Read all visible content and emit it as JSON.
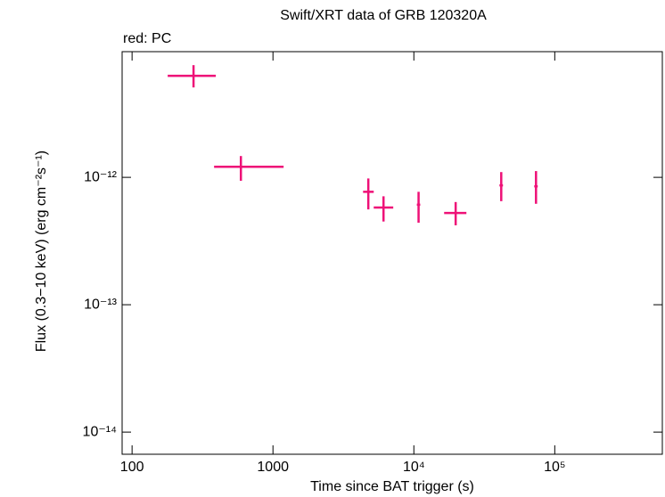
{
  "chart_data": {
    "type": "scatter",
    "title": "Swift/XRT data of GRB 120320A",
    "annotation": "red: PC",
    "x_label": "Time since BAT trigger (s)",
    "y_label": "Flux (0.3−10 keV) (erg cm⁻²s⁻¹)",
    "log_x": true,
    "log_y": true,
    "xlim": [
      85,
      580000
    ],
    "ylim": [
      6.7e-15,
      9.7e-12
    ],
    "xticks": [
      100,
      1000,
      {
        "value": 10000,
        "label": "10⁴"
      },
      {
        "value": 100000,
        "label": "10⁵"
      }
    ],
    "yticks": [
      {
        "value": 1e-14,
        "label": "10⁻¹⁴"
      },
      {
        "value": 1e-13,
        "label": "10⁻¹³"
      },
      {
        "value": 1e-12,
        "label": "10⁻¹²"
      }
    ],
    "series": [
      {
        "color": "#ee1177",
        "x": [
          273,
          592,
          4750,
          6090,
          10800,
          19800,
          41700,
          73600
        ],
        "x_low": [
          179,
          382,
          4360,
          5190,
          10500,
          16400,
          40500,
          71500
        ],
        "x_high": [
          393,
          1190,
          5190,
          7140,
          11100,
          23600,
          42900,
          75700
        ],
        "values": [
          6.27e-12,
          1.21e-12,
          7.7e-13,
          5.8e-13,
          6.1e-13,
          5.25e-13,
          8.65e-13,
          8.5e-13
        ],
        "y_low": [
          5.08e-12,
          9.4e-13,
          5.6e-13,
          4.5e-13,
          4.4e-13,
          4.2e-13,
          6.5e-13,
          6.2e-13
        ],
        "y_high": [
          7.6e-12,
          1.47e-12,
          9.8e-13,
          7.1e-13,
          7.7e-13,
          6.4e-13,
          1.1e-12,
          1.12e-12
        ]
      }
    ]
  }
}
